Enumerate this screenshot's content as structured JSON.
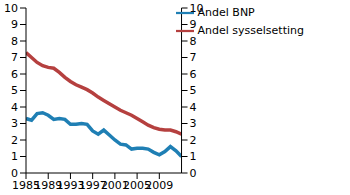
{
  "chart_data": {
    "type": "line",
    "x": [
      1985,
      1986,
      1987,
      1988,
      1989,
      1990,
      1991,
      1992,
      1993,
      1994,
      1995,
      1996,
      1997,
      1998,
      1999,
      2000,
      2001,
      2002,
      2003,
      2004,
      2005,
      2006,
      2007,
      2008,
      2009,
      2010,
      2011,
      2012,
      2013
    ],
    "series": [
      {
        "name": "Andel BNP",
        "color": "#1f7fb4",
        "values": [
          3.3,
          3.2,
          3.6,
          3.65,
          3.5,
          3.25,
          3.3,
          3.25,
          2.95,
          2.95,
          3.0,
          2.95,
          2.55,
          2.35,
          2.6,
          2.3,
          2.0,
          1.75,
          1.7,
          1.45,
          1.5,
          1.5,
          1.45,
          1.25,
          1.1,
          1.3,
          1.6,
          1.35,
          1.0
        ]
      },
      {
        "name": "Andel sysselsetting",
        "color": "#b5403f",
        "values": [
          7.3,
          7.0,
          6.7,
          6.5,
          6.4,
          6.35,
          6.1,
          5.8,
          5.55,
          5.35,
          5.2,
          5.05,
          4.85,
          4.6,
          4.4,
          4.2,
          4.0,
          3.8,
          3.65,
          3.5,
          3.3,
          3.1,
          2.9,
          2.75,
          2.65,
          2.6,
          2.6,
          2.5,
          2.35
        ]
      }
    ],
    "xlim": [
      1985,
      2013
    ],
    "xticks": [
      1985,
      1989,
      1993,
      1997,
      2001,
      2005,
      2009
    ],
    "ylim": [
      0,
      10
    ],
    "yticks": [
      0,
      1,
      2,
      3,
      4,
      5,
      6,
      7,
      8,
      9,
      10
    ],
    "y2lim": [
      0,
      10
    ],
    "y2ticks": [
      0,
      1,
      2,
      3,
      4,
      5,
      6,
      7,
      8,
      9,
      10
    ],
    "grid": false,
    "legend": "top-right"
  }
}
